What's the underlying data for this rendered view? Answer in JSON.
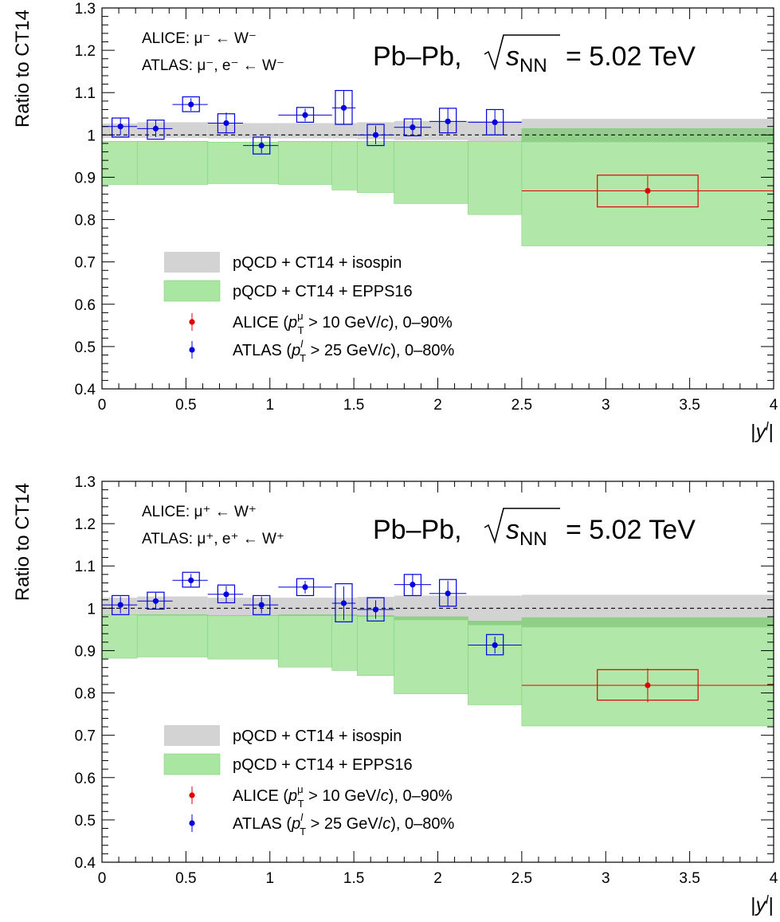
{
  "chart_data": [
    {
      "type": "scatter",
      "id": "wminus",
      "ylabel": "Ratio to CT14",
      "xlabel": "|y^l|",
      "xlim": [
        0,
        4
      ],
      "ylim": [
        0.4,
        1.3
      ],
      "x_ticks": [
        "0",
        "0.5",
        "1",
        "1.5",
        "2",
        "2.5",
        "3",
        "3.5",
        "4"
      ],
      "x_tick_values": [
        0,
        0.5,
        1,
        1.5,
        2,
        2.5,
        3,
        3.5,
        4
      ],
      "y_ticks": [
        "0.4",
        "0.5",
        "0.6",
        "0.7",
        "0.8",
        "0.9",
        "1",
        "1.1",
        "1.2",
        "1.3"
      ],
      "y_tick_values": [
        0.4,
        0.5,
        0.6,
        0.7,
        0.8,
        0.9,
        1.0,
        1.1,
        1.2,
        1.3
      ],
      "reference_line": 1.0,
      "annotation_alice": "ALICE: μ⁻ ← W⁻",
      "annotation_atlas": "ATLAS: μ⁻, e⁻ ← W⁻",
      "system_label": "Pb–Pb,",
      "energy_label": "= 5.02 TeV",
      "legend": {
        "isospin": "pQCD + CT14 + isospin",
        "epps16": "pQCD + CT14 + EPPS16",
        "alice": "ALICE (p_T^μ > 10 GeV/c), 0–90%",
        "atlas": "ATLAS (p_T^l > 25 GeV/c), 0–80%"
      },
      "series": [
        {
          "name": "pQCD + CT14 + isospin",
          "kind": "band",
          "color": "#d3d3d3",
          "bins": [
            {
              "x": [
                0,
                0.21
              ],
              "lo": 0.993,
              "hi": 1.027
            },
            {
              "x": [
                0.21,
                0.63
              ],
              "lo": 0.993,
              "hi": 1.03
            },
            {
              "x": [
                0.63,
                1.05
              ],
              "lo": 0.992,
              "hi": 1.028
            },
            {
              "x": [
                1.05,
                1.37
              ],
              "lo": 0.992,
              "hi": 1.028
            },
            {
              "x": [
                1.37,
                1.52
              ],
              "lo": 0.992,
              "hi": 1.028
            },
            {
              "x": [
                1.52,
                1.74
              ],
              "lo": 0.99,
              "hi": 1.03
            },
            {
              "x": [
                1.74,
                2.18
              ],
              "lo": 0.988,
              "hi": 1.033
            },
            {
              "x": [
                2.18,
                2.5
              ],
              "lo": 0.985,
              "hi": 1.033
            },
            {
              "x": [
                2.5,
                4.0
              ],
              "lo": 0.983,
              "hi": 1.038
            }
          ]
        },
        {
          "name": "pQCD + CT14 + EPPS16",
          "kind": "band",
          "color": "#a8e6a1",
          "bins": [
            {
              "x": [
                0,
                0.21
              ],
              "lo": 0.883,
              "hi": 0.985
            },
            {
              "x": [
                0.21,
                0.63
              ],
              "lo": 0.883,
              "hi": 0.985
            },
            {
              "x": [
                0.63,
                1.05
              ],
              "lo": 0.885,
              "hi": 0.983
            },
            {
              "x": [
                1.05,
                1.37
              ],
              "lo": 0.883,
              "hi": 0.985
            },
            {
              "x": [
                1.37,
                1.52
              ],
              "lo": 0.87,
              "hi": 0.985
            },
            {
              "x": [
                1.52,
                1.74
              ],
              "lo": 0.864,
              "hi": 0.985
            },
            {
              "x": [
                1.74,
                2.18
              ],
              "lo": 0.838,
              "hi": 0.985
            },
            {
              "x": [
                2.18,
                2.5
              ],
              "lo": 0.812,
              "hi": 0.985
            },
            {
              "x": [
                2.5,
                4.0
              ],
              "lo": 0.738,
              "hi": 1.015
            }
          ]
        },
        {
          "name": "ALICE (p_T^μ > 10 GeV/c), 0–90%",
          "kind": "points",
          "color": "#e00000",
          "points": [
            {
              "x": 3.25,
              "y": 0.868,
              "xerr": [
                0.75,
                0.75
              ],
              "stat": 0.035,
              "box_x": [
                2.95,
                3.55
              ],
              "box_y": [
                0.83,
                0.905
              ]
            }
          ]
        },
        {
          "name": "ATLAS (p_T^l > 25 GeV/c), 0–80%",
          "kind": "points",
          "color": "#0000e0",
          "points": [
            {
              "x": 0.11,
              "y": 1.02,
              "xerr": [
                0.11,
                0.1
              ],
              "stat": 0.02,
              "box_x": [
                0.06,
                0.16
              ],
              "box_y": [
                0.995,
                1.04
              ]
            },
            {
              "x": 0.32,
              "y": 1.015,
              "xerr": [
                0.11,
                0.1
              ],
              "stat": 0.02,
              "box_x": [
                0.27,
                0.37
              ],
              "box_y": [
                0.99,
                1.035
              ]
            },
            {
              "x": 0.53,
              "y": 1.072,
              "xerr": [
                0.11,
                0.1
              ],
              "stat": 0.015,
              "box_x": [
                0.48,
                0.58
              ],
              "box_y": [
                1.055,
                1.09
              ]
            },
            {
              "x": 0.74,
              "y": 1.028,
              "xerr": [
                0.11,
                0.1
              ],
              "stat": 0.025,
              "box_x": [
                0.69,
                0.79
              ],
              "box_y": [
                1.005,
                1.05
              ]
            },
            {
              "x": 0.95,
              "y": 0.975,
              "xerr": [
                0.11,
                0.1
              ],
              "stat": 0.018,
              "box_x": [
                0.9,
                1.0
              ],
              "box_y": [
                0.955,
                0.995
              ]
            },
            {
              "x": 1.21,
              "y": 1.047,
              "xerr": [
                0.16,
                0.16
              ],
              "stat": 0.015,
              "box_x": [
                1.16,
                1.26
              ],
              "box_y": [
                1.03,
                1.065
              ]
            },
            {
              "x": 1.44,
              "y": 1.064,
              "xerr": [
                0.07,
                0.07
              ],
              "stat": 0.04,
              "box_x": [
                1.39,
                1.49
              ],
              "box_y": [
                1.025,
                1.105
              ]
            },
            {
              "x": 1.63,
              "y": 1.0,
              "xerr": [
                0.11,
                0.11
              ],
              "stat": 0.022,
              "box_x": [
                1.58,
                1.68
              ],
              "box_y": [
                0.975,
                1.025
              ]
            },
            {
              "x": 1.85,
              "y": 1.018,
              "xerr": [
                0.11,
                0.11
              ],
              "stat": 0.02,
              "box_x": [
                1.8,
                1.9
              ],
              "box_y": [
                0.998,
                1.038
              ]
            },
            {
              "x": 2.06,
              "y": 1.032,
              "xerr": [
                0.11,
                0.11
              ],
              "stat": 0.03,
              "box_x": [
                2.01,
                2.11
              ],
              "box_y": [
                1.005,
                1.063
              ]
            },
            {
              "x": 2.34,
              "y": 1.03,
              "xerr": [
                0.16,
                0.16
              ],
              "stat": 0.03,
              "box_x": [
                2.29,
                2.39
              ],
              "box_y": [
                1.0,
                1.06
              ]
            }
          ]
        }
      ]
    },
    {
      "type": "scatter",
      "id": "wplus",
      "ylabel": "Ratio to CT14",
      "xlabel": "|y^l|",
      "xlim": [
        0,
        4
      ],
      "ylim": [
        0.4,
        1.3
      ],
      "x_ticks": [
        "0",
        "0.5",
        "1",
        "1.5",
        "2",
        "2.5",
        "3",
        "3.5",
        "4"
      ],
      "x_tick_values": [
        0,
        0.5,
        1,
        1.5,
        2,
        2.5,
        3,
        3.5,
        4
      ],
      "y_ticks": [
        "0.4",
        "0.5",
        "0.6",
        "0.7",
        "0.8",
        "0.9",
        "1",
        "1.1",
        "1.2",
        "1.3"
      ],
      "y_tick_values": [
        0.4,
        0.5,
        0.6,
        0.7,
        0.8,
        0.9,
        1.0,
        1.1,
        1.2,
        1.3
      ],
      "reference_line": 1.0,
      "annotation_alice": "ALICE: μ⁺ ← W⁺",
      "annotation_atlas": "ATLAS: μ⁺, e⁺ ← W⁺",
      "system_label": "Pb–Pb,",
      "energy_label": "= 5.02 TeV",
      "legend": {
        "isospin": "pQCD + CT14 + isospin",
        "epps16": "pQCD + CT14 + EPPS16",
        "alice": "ALICE (p_T^μ > 10 GeV/c), 0–90%",
        "atlas": "ATLAS (p_T^l > 25 GeV/c), 0–80%"
      },
      "series": [
        {
          "name": "pQCD + CT14 + isospin",
          "kind": "band",
          "color": "#d3d3d3",
          "bins": [
            {
              "x": [
                0,
                0.21
              ],
              "lo": 0.985,
              "hi": 1.025
            },
            {
              "x": [
                0.21,
                0.63
              ],
              "lo": 0.983,
              "hi": 1.028
            },
            {
              "x": [
                0.63,
                1.05
              ],
              "lo": 0.982,
              "hi": 1.025
            },
            {
              "x": [
                1.05,
                1.37
              ],
              "lo": 0.982,
              "hi": 1.025
            },
            {
              "x": [
                1.37,
                1.52
              ],
              "lo": 0.982,
              "hi": 1.025
            },
            {
              "x": [
                1.52,
                1.74
              ],
              "lo": 0.98,
              "hi": 1.027
            },
            {
              "x": [
                1.74,
                2.18
              ],
              "lo": 0.972,
              "hi": 1.03
            },
            {
              "x": [
                2.18,
                2.5
              ],
              "lo": 0.96,
              "hi": 1.03
            },
            {
              "x": [
                2.5,
                4.0
              ],
              "lo": 0.955,
              "hi": 1.032
            }
          ]
        },
        {
          "name": "pQCD + CT14 + EPPS16",
          "kind": "band",
          "color": "#a8e6a1",
          "bins": [
            {
              "x": [
                0,
                0.21
              ],
              "lo": 0.882,
              "hi": 0.985
            },
            {
              "x": [
                0.21,
                0.63
              ],
              "lo": 0.885,
              "hi": 0.985
            },
            {
              "x": [
                0.63,
                1.05
              ],
              "lo": 0.88,
              "hi": 0.983
            },
            {
              "x": [
                1.05,
                1.37
              ],
              "lo": 0.861,
              "hi": 0.985
            },
            {
              "x": [
                1.37,
                1.52
              ],
              "lo": 0.853,
              "hi": 0.985
            },
            {
              "x": [
                1.52,
                1.74
              ],
              "lo": 0.841,
              "hi": 0.983
            },
            {
              "x": [
                1.74,
                2.18
              ],
              "lo": 0.798,
              "hi": 0.98
            },
            {
              "x": [
                2.18,
                2.5
              ],
              "lo": 0.772,
              "hi": 0.97
            },
            {
              "x": [
                2.5,
                4.0
              ],
              "lo": 0.722,
              "hi": 0.978
            }
          ]
        },
        {
          "name": "ALICE (p_T^μ > 10 GeV/c), 0–90%",
          "kind": "points",
          "color": "#e00000",
          "points": [
            {
              "x": 3.25,
              "y": 0.818,
              "xerr": [
                0.75,
                0.75
              ],
              "stat": 0.04,
              "box_x": [
                2.95,
                3.55
              ],
              "box_y": [
                0.783,
                0.855
              ]
            }
          ]
        },
        {
          "name": "ATLAS (p_T^l > 25 GeV/c), 0–80%",
          "kind": "points",
          "color": "#0000e0",
          "points": [
            {
              "x": 0.11,
              "y": 1.008,
              "xerr": [
                0.11,
                0.1
              ],
              "stat": 0.02,
              "box_x": [
                0.06,
                0.16
              ],
              "box_y": [
                0.985,
                1.03
              ]
            },
            {
              "x": 0.32,
              "y": 1.017,
              "xerr": [
                0.11,
                0.1
              ],
              "stat": 0.02,
              "box_x": [
                0.27,
                0.37
              ],
              "box_y": [
                0.998,
                1.038
              ]
            },
            {
              "x": 0.53,
              "y": 1.066,
              "xerr": [
                0.11,
                0.1
              ],
              "stat": 0.015,
              "box_x": [
                0.48,
                0.58
              ],
              "box_y": [
                1.05,
                1.085
              ]
            },
            {
              "x": 0.74,
              "y": 1.033,
              "xerr": [
                0.11,
                0.1
              ],
              "stat": 0.02,
              "box_x": [
                0.69,
                0.79
              ],
              "box_y": [
                1.013,
                1.055
              ]
            },
            {
              "x": 0.95,
              "y": 1.008,
              "xerr": [
                0.11,
                0.1
              ],
              "stat": 0.02,
              "box_x": [
                0.9,
                1.0
              ],
              "box_y": [
                0.985,
                1.03
              ]
            },
            {
              "x": 1.21,
              "y": 1.05,
              "xerr": [
                0.16,
                0.16
              ],
              "stat": 0.015,
              "box_x": [
                1.16,
                1.26
              ],
              "box_y": [
                1.03,
                1.07
              ]
            },
            {
              "x": 1.44,
              "y": 1.012,
              "xerr": [
                0.07,
                0.07
              ],
              "stat": 0.04,
              "box_x": [
                1.39,
                1.49
              ],
              "box_y": [
                0.968,
                1.058
              ]
            },
            {
              "x": 1.63,
              "y": 0.997,
              "xerr": [
                0.11,
                0.11
              ],
              "stat": 0.022,
              "box_x": [
                1.58,
                1.68
              ],
              "box_y": [
                0.97,
                1.025
              ]
            },
            {
              "x": 1.85,
              "y": 1.056,
              "xerr": [
                0.11,
                0.11
              ],
              "stat": 0.025,
              "box_x": [
                1.8,
                1.9
              ],
              "box_y": [
                1.03,
                1.08
              ]
            },
            {
              "x": 2.06,
              "y": 1.035,
              "xerr": [
                0.11,
                0.11
              ],
              "stat": 0.03,
              "box_x": [
                2.01,
                2.11
              ],
              "box_y": [
                1.005,
                1.068
              ]
            },
            {
              "x": 2.34,
              "y": 0.913,
              "xerr": [
                0.16,
                0.16
              ],
              "stat": 0.02,
              "box_x": [
                2.29,
                2.39
              ],
              "box_y": [
                0.89,
                0.938
              ]
            }
          ]
        }
      ]
    }
  ]
}
